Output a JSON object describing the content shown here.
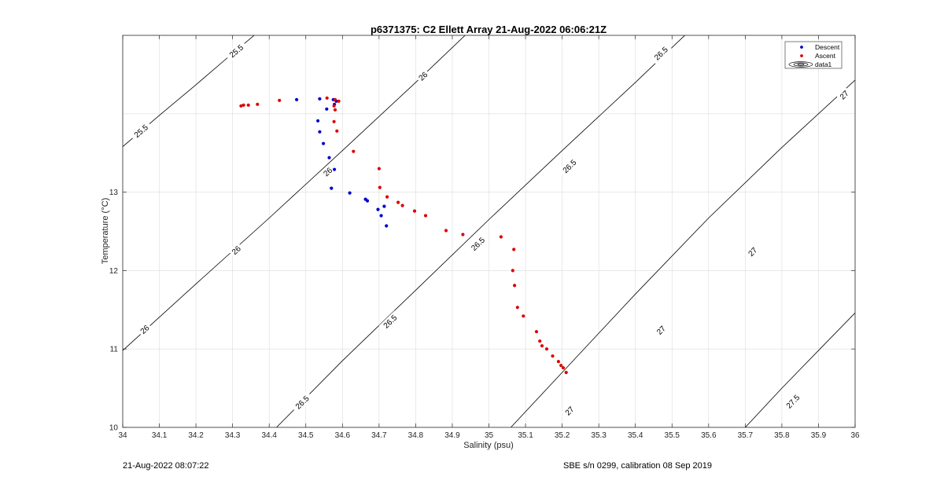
{
  "footer": {
    "left": "21-Aug-2022 08:07:22",
    "right": "SBE s/n 0299, calibration 08 Sep 2019"
  },
  "chart_data": {
    "type": "scatter",
    "title": "p6371375: C2 Ellett Array 21-Aug-2022 06:06:21Z",
    "xlabel": "Salinity (psu)",
    "ylabel": "Temperature (°C)",
    "xlim": [
      34,
      36
    ],
    "ylim": [
      10,
      15
    ],
    "xticks": [
      "34",
      "34.1",
      "34.2",
      "34.3",
      "34.4",
      "34.5",
      "34.6",
      "34.7",
      "34.8",
      "34.9",
      "35",
      "35.1",
      "35.2",
      "35.3",
      "35.4",
      "35.5",
      "35.6",
      "35.7",
      "35.8",
      "35.9",
      "36"
    ],
    "yticks": [
      "10",
      "11",
      "12",
      "13"
    ],
    "grid": true,
    "legend": {
      "position": "top-right",
      "entries": [
        "Descent",
        "Ascent",
        "data1"
      ]
    },
    "colors": {
      "descent": "#0000cc",
      "ascent": "#dd0000",
      "contour": "#000000"
    },
    "series": [
      {
        "name": "Descent",
        "points": [
          [
            34.475,
            14.18
          ],
          [
            34.538,
            14.19
          ],
          [
            34.575,
            14.18
          ],
          [
            34.583,
            14.16
          ],
          [
            34.578,
            14.12
          ],
          [
            34.557,
            14.06
          ],
          [
            34.533,
            13.91
          ],
          [
            34.538,
            13.77
          ],
          [
            34.548,
            13.62
          ],
          [
            34.564,
            13.44
          ],
          [
            34.578,
            13.29
          ],
          [
            34.57,
            13.05
          ],
          [
            34.62,
            12.99
          ],
          [
            34.663,
            12.91
          ],
          [
            34.668,
            12.89
          ],
          [
            34.697,
            12.78
          ],
          [
            34.714,
            12.82
          ],
          [
            34.706,
            12.7
          ],
          [
            34.72,
            12.57
          ]
        ]
      },
      {
        "name": "Ascent",
        "points": [
          [
            34.323,
            14.1
          ],
          [
            34.33,
            14.11
          ],
          [
            34.343,
            14.11
          ],
          [
            34.368,
            14.12
          ],
          [
            34.428,
            14.17
          ],
          [
            34.558,
            14.2
          ],
          [
            34.58,
            14.18
          ],
          [
            34.59,
            14.16
          ],
          [
            34.577,
            14.1
          ],
          [
            34.58,
            14.05
          ],
          [
            34.577,
            13.9
          ],
          [
            34.585,
            13.78
          ],
          [
            34.63,
            13.52
          ],
          [
            34.7,
            13.3
          ],
          [
            34.702,
            13.06
          ],
          [
            34.722,
            12.94
          ],
          [
            34.752,
            12.87
          ],
          [
            34.764,
            12.83
          ],
          [
            34.797,
            12.76
          ],
          [
            34.827,
            12.7
          ],
          [
            34.883,
            12.51
          ],
          [
            34.929,
            12.46
          ],
          [
            35.033,
            12.43
          ],
          [
            35.068,
            12.27
          ],
          [
            35.065,
            12.0
          ],
          [
            35.07,
            11.81
          ],
          [
            35.078,
            11.53
          ],
          [
            35.094,
            11.42
          ],
          [
            35.13,
            11.22
          ],
          [
            35.139,
            11.1
          ],
          [
            35.145,
            11.04
          ],
          [
            35.158,
            11.0
          ],
          [
            35.174,
            10.91
          ],
          [
            35.19,
            10.84
          ],
          [
            35.197,
            10.79
          ],
          [
            35.203,
            10.76
          ],
          [
            35.211,
            10.7
          ]
        ]
      }
    ],
    "contours": [
      {
        "label": "25.5",
        "points": [
          [
            34.0,
            13.58
          ],
          [
            34.1,
            13.98
          ],
          [
            34.2,
            14.37
          ],
          [
            34.3,
            14.77
          ],
          [
            34.4,
            15.16
          ]
        ]
      },
      {
        "label": "26",
        "points": [
          [
            34.0,
            10.98
          ],
          [
            34.2,
            11.83
          ],
          [
            34.4,
            12.67
          ],
          [
            34.6,
            13.53
          ],
          [
            34.8,
            14.4
          ],
          [
            34.98,
            15.2
          ]
        ]
      },
      {
        "label": "26.5",
        "points": [
          [
            34.42,
            10.0
          ],
          [
            34.6,
            10.85
          ],
          [
            34.8,
            11.75
          ],
          [
            35.0,
            12.65
          ],
          [
            35.2,
            13.53
          ],
          [
            35.4,
            14.4
          ],
          [
            35.58,
            15.2
          ]
        ]
      },
      {
        "label": "27",
        "points": [
          [
            35.06,
            10.0
          ],
          [
            35.2,
            10.7
          ],
          [
            35.4,
            11.7
          ],
          [
            35.6,
            12.67
          ],
          [
            35.8,
            13.57
          ],
          [
            36.0,
            14.43
          ]
        ]
      },
      {
        "label": "27.5",
        "points": [
          [
            35.7,
            10.0
          ],
          [
            35.8,
            10.5
          ],
          [
            35.9,
            10.98
          ],
          [
            36.0,
            11.46
          ]
        ]
      }
    ],
    "contour_labels": [
      {
        "text": "25.5",
        "at": [
          34.31,
          14.8
        ]
      },
      {
        "text": "25.5",
        "at": [
          34.05,
          13.78
        ]
      },
      {
        "text": "26",
        "at": [
          34.82,
          14.48
        ]
      },
      {
        "text": "26",
        "at": [
          34.56,
          13.26
        ]
      },
      {
        "text": "26",
        "at": [
          34.31,
          12.26
        ]
      },
      {
        "text": "26",
        "at": [
          34.06,
          11.25
        ]
      },
      {
        "text": "26.5",
        "at": [
          35.47,
          14.77
        ]
      },
      {
        "text": "26.5",
        "at": [
          35.22,
          13.33
        ]
      },
      {
        "text": "26.5",
        "at": [
          34.97,
          12.34
        ]
      },
      {
        "text": "26.5",
        "at": [
          34.73,
          11.35
        ]
      },
      {
        "text": "26.5",
        "at": [
          34.49,
          10.32
        ]
      },
      {
        "text": "27",
        "at": [
          35.97,
          14.24
        ]
      },
      {
        "text": "27",
        "at": [
          35.72,
          12.24
        ]
      },
      {
        "text": "27",
        "at": [
          35.47,
          11.24
        ]
      },
      {
        "text": "27",
        "at": [
          35.22,
          10.21
        ]
      },
      {
        "text": "27.5",
        "at": [
          35.83,
          10.33
        ]
      }
    ]
  }
}
